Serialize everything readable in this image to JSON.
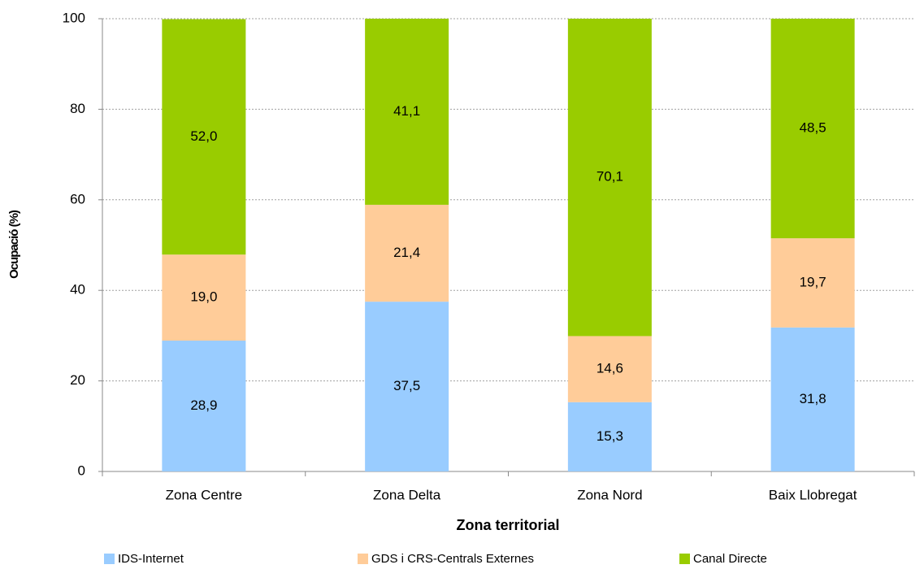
{
  "chart_data": {
    "type": "stacked_bar",
    "x_label": "Zona territorial",
    "y_label": "Ocupació (%)",
    "categories": [
      "Zona Centre",
      "Zona Delta",
      "Zona Nord",
      "Baix Llobregat"
    ],
    "series": [
      {
        "name": "IDS-Internet",
        "color": "#99ccff",
        "values": [
          28.9,
          37.5,
          15.3,
          31.8
        ],
        "value_labels": [
          "28,9",
          "37,5",
          "15,3",
          "31,8"
        ]
      },
      {
        "name": "GDS i CRS-Centrals Externes",
        "color": "#ffcc99",
        "values": [
          19.0,
          21.4,
          14.6,
          19.7
        ],
        "value_labels": [
          "19,0",
          "21,4",
          "14,6",
          "19,7"
        ]
      },
      {
        "name": "Canal Directe",
        "color": "#99cc00",
        "values": [
          52.0,
          41.1,
          70.1,
          48.5
        ],
        "value_labels": [
          "52,0",
          "41,1",
          "70,1",
          "48,5"
        ]
      }
    ],
    "ylim": [
      0,
      100
    ],
    "yticks": [
      0,
      20,
      40,
      60,
      80,
      100
    ],
    "grid": true,
    "legend": "bottom"
  }
}
